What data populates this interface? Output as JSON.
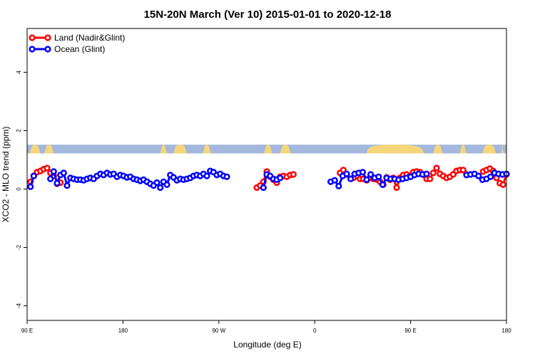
{
  "chart_data": {
    "type": "line",
    "title": "15N-20N March (Ver 10)   2015-01-01 to 2020-12-18",
    "xlabel": "Longitude (deg E)",
    "ylabel": "XCO2 - MLO trend (ppm)",
    "xlim": [
      90,
      450
    ],
    "ylim": [
      -4.5,
      5.5
    ],
    "x_ticks": [
      {
        "value": 90,
        "label": "90 E"
      },
      {
        "value": 180,
        "label": "180"
      },
      {
        "value": 270,
        "label": "90 W"
      },
      {
        "value": 360,
        "label": "0"
      },
      {
        "value": 450,
        "label": "90 E"
      },
      {
        "value": 540,
        "label": "180"
      }
    ],
    "y_ticks": [
      {
        "value": -4,
        "label": "-4"
      },
      {
        "value": -2,
        "label": "-2"
      },
      {
        "value": 0,
        "label": "0"
      },
      {
        "value": 2,
        "label": "2"
      },
      {
        "value": 4,
        "label": "4"
      }
    ],
    "land_band": {
      "y_range": [
        1.22,
        1.52
      ],
      "ocean_color": "#a3b8dc",
      "land_color": "#f5d67a"
    },
    "legend": {
      "position": "top-left",
      "entries": [
        {
          "label": "Land (Nadir&Glint)",
          "color": "#ff0000"
        },
        {
          "label": "Ocean (Glint)",
          "color": "#0000ff"
        }
      ]
    },
    "series": [
      {
        "name": "Land (Nadir&Glint)",
        "color": "#ff0000",
        "segments": [
          [
            [
              92.5,
              0.25
            ],
            [
              95,
              0.45
            ],
            [
              97.5,
              0.58
            ],
            [
              100,
              0.62
            ],
            [
              102.5,
              0.68
            ],
            [
              105,
              0.72
            ],
            [
              107.5,
              0.55
            ],
            [
              110,
              0.45
            ]
          ],
          [
            [
              112.5,
              0.18
            ],
            [
              115,
              0.22
            ]
          ],
          [
            [
              262.5,
              0.05
            ],
            [
              265,
              0.12
            ],
            [
              267.5,
              0.25
            ],
            [
              270,
              0.6
            ],
            [
              272.5,
              0.42
            ],
            [
              275,
              0.32
            ],
            [
              277.5,
              0.22
            ],
            [
              280,
              0.42
            ],
            [
              282.5,
              0.45
            ],
            [
              285,
              0.42
            ],
            [
              287.5,
              0.48
            ],
            [
              290,
              0.5
            ]
          ],
          [
            [
              325,
              0.55
            ],
            [
              327.5,
              0.65
            ],
            [
              330,
              0.5
            ]
          ],
          [
            [
              335,
              0.38
            ],
            [
              340,
              0.35
            ],
            [
              342.5,
              0.35
            ],
            [
              345,
              0.3
            ],
            [
              347.5,
              0.38
            ],
            [
              350,
              0.35
            ],
            [
              352.5,
              0.33
            ],
            [
              355,
              0.25
            ]
          ],
          [
            [
              357.5,
              0.15
            ],
            [
              360,
              0.4
            ],
            [
              362.5,
              0.32
            ],
            [
              365,
              0.38
            ],
            [
              367.5,
              0.05
            ],
            [
              370,
              0.38
            ],
            [
              372.5,
              0.48
            ],
            [
              375,
              0.5
            ],
            [
              377.5,
              0.45
            ],
            [
              380,
              0.58
            ],
            [
              382.5,
              0.6
            ],
            [
              385,
              0.58
            ],
            [
              387.5,
              0.5
            ],
            [
              390,
              0.35
            ]
          ],
          [
            [
              392.5,
              0.35
            ],
            [
              395,
              0.55
            ],
            [
              397.5,
              0.72
            ],
            [
              400,
              0.52
            ],
            [
              402.5,
              0.45
            ],
            [
              405,
              0.38
            ],
            [
              407.5,
              0.42
            ]
          ],
          [
            [
              410,
              0.5
            ],
            [
              412.5,
              0.62
            ],
            [
              415,
              0.65
            ],
            [
              417.5,
              0.65
            ],
            [
              420,
              0.5
            ]
          ],
          [
            [
              432.5,
              0.6
            ],
            [
              435,
              0.65
            ],
            [
              437.5,
              0.7
            ],
            [
              440,
              0.62
            ],
            [
              442.5,
              0.38
            ]
          ],
          [
            [
              445,
              0.2
            ],
            [
              447.5,
              0.15
            ],
            [
              450,
              0.5
            ]
          ]
        ]
      },
      {
        "name": "Ocean (Glint)",
        "color": "#0000ff",
        "segments": [
          [
            [
              92.5,
              0.08
            ],
            [
              95,
              0.45
            ]
          ],
          [
            [
              107.5,
              0.35
            ],
            [
              110,
              0.6
            ],
            [
              112.5,
              0.2
            ],
            [
              115,
              0.48
            ],
            [
              117.5,
              0.55
            ],
            [
              120,
              0.12
            ],
            [
              122.5,
              0.38
            ],
            [
              125,
              0.35
            ],
            [
              127.5,
              0.32
            ],
            [
              130,
              0.32
            ],
            [
              132.5,
              0.3
            ],
            [
              135,
              0.35
            ],
            [
              137.5,
              0.38
            ],
            [
              140,
              0.35
            ],
            [
              142.5,
              0.45
            ],
            [
              145,
              0.52
            ],
            [
              147.5,
              0.48
            ],
            [
              150,
              0.55
            ],
            [
              152.5,
              0.5
            ],
            [
              155,
              0.52
            ],
            [
              157.5,
              0.42
            ],
            [
              160,
              0.48
            ],
            [
              162.5,
              0.45
            ],
            [
              165,
              0.4
            ],
            [
              167.5,
              0.42
            ],
            [
              170,
              0.35
            ],
            [
              172.5,
              0.32
            ],
            [
              175,
              0.28
            ],
            [
              177.5,
              0.32
            ],
            [
              180,
              0.25
            ]
          ],
          [
            [
              180,
              0.25
            ],
            [
              182.5,
              0.18
            ],
            [
              185,
              0.12
            ],
            [
              187.5,
              0.22
            ],
            [
              190,
              0.05
            ],
            [
              192.5,
              0.25
            ],
            [
              195,
              0.15
            ],
            [
              197.5,
              0.48
            ],
            [
              200,
              0.4
            ],
            [
              202.5,
              0.3
            ],
            [
              205,
              0.35
            ],
            [
              207.5,
              0.32
            ],
            [
              210,
              0.35
            ],
            [
              212.5,
              0.38
            ],
            [
              215,
              0.45
            ],
            [
              217.5,
              0.48
            ],
            [
              220,
              0.45
            ],
            [
              222.5,
              0.52
            ],
            [
              225,
              0.45
            ],
            [
              227.5,
              0.62
            ],
            [
              230,
              0.58
            ],
            [
              232.5,
              0.48
            ],
            [
              235,
              0.52
            ],
            [
              237.5,
              0.45
            ],
            [
              240,
              0.42
            ]
          ],
          [
            [
              267.5,
              0.05
            ],
            [
              270,
              0.5
            ],
            [
              272.5,
              0.45
            ],
            [
              275,
              0.35
            ],
            [
              277.5,
              0.32
            ],
            [
              280,
              0.38
            ]
          ],
          [
            [
              318,
              0.25
            ],
            [
              321,
              0.3
            ],
            [
              324,
              0.1
            ],
            [
              327,
              0.45
            ],
            [
              330,
              0.52
            ],
            [
              333,
              0.35
            ],
            [
              336,
              0.52
            ],
            [
              339,
              0.55
            ],
            [
              342,
              0.58
            ],
            [
              345,
              0.32
            ],
            [
              348,
              0.5
            ],
            [
              351,
              0.38
            ],
            [
              354,
              0.42
            ],
            [
              357,
              0.15
            ],
            [
              360,
              0.38
            ],
            [
              363,
              0.35
            ],
            [
              366,
              0.35
            ],
            [
              369,
              0.32
            ],
            [
              372,
              0.35
            ],
            [
              375,
              0.38
            ],
            [
              378,
              0.42
            ],
            [
              381,
              0.48
            ],
            [
              384,
              0.52
            ],
            [
              387,
              0.5
            ],
            [
              390,
              0.52
            ]
          ],
          [
            [
              420,
              0.48
            ],
            [
              423,
              0.5
            ],
            [
              426,
              0.52
            ],
            [
              429,
              0.45
            ],
            [
              432,
              0.32
            ],
            [
              435,
              0.35
            ],
            [
              438,
              0.42
            ],
            [
              441,
              0.55
            ],
            [
              444,
              0.52
            ],
            [
              447,
              0.5
            ],
            [
              450,
              0.52
            ]
          ]
        ]
      }
    ]
  }
}
